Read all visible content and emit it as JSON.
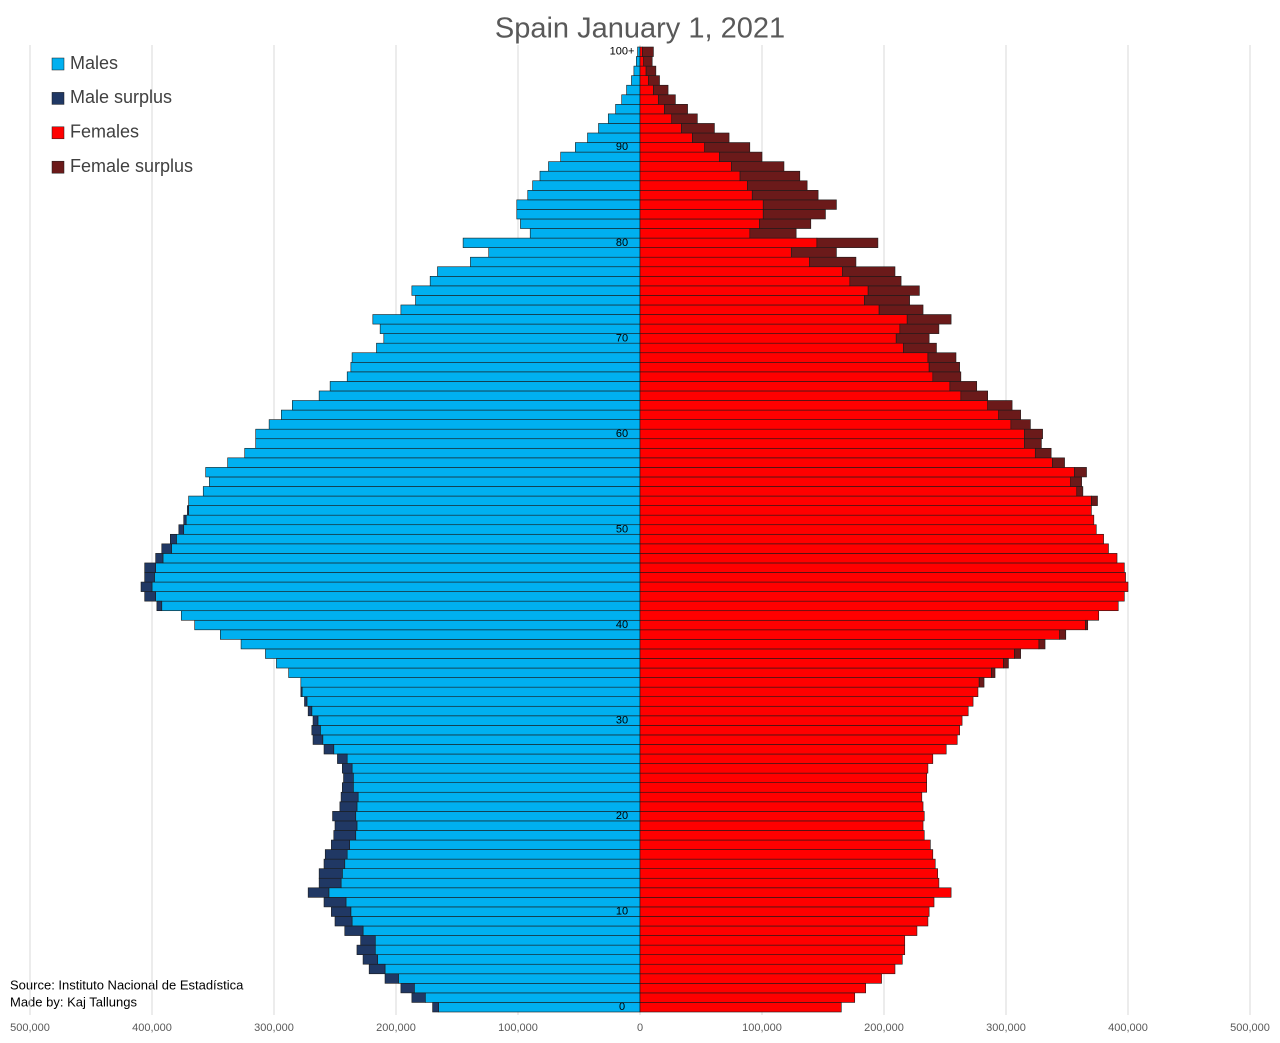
{
  "chart_data": {
    "type": "population-pyramid",
    "title": "Spain January 1, 2021",
    "source": "Source: Instituto Nacional de Estadística",
    "author": "Made by: Kaj Tallungs",
    "categories": [
      "0",
      null,
      null,
      null,
      null,
      null,
      null,
      null,
      null,
      null,
      "10",
      null,
      null,
      null,
      null,
      null,
      null,
      null,
      null,
      null,
      "20",
      null,
      null,
      null,
      null,
      null,
      null,
      null,
      null,
      null,
      "30",
      null,
      null,
      null,
      null,
      null,
      null,
      null,
      null,
      null,
      "40",
      null,
      null,
      null,
      null,
      null,
      null,
      null,
      null,
      null,
      "50",
      null,
      null,
      null,
      null,
      null,
      null,
      null,
      null,
      null,
      "60",
      null,
      null,
      null,
      null,
      null,
      null,
      null,
      null,
      null,
      "70",
      null,
      null,
      null,
      null,
      null,
      null,
      null,
      null,
      null,
      "80",
      null,
      null,
      null,
      null,
      null,
      null,
      null,
      null,
      null,
      "90",
      null,
      null,
      null,
      null,
      null,
      null,
      null,
      null,
      null,
      "100+"
    ],
    "series": [
      {
        "name": "Males",
        "color": "#00b0f0",
        "side": "left",
        "stack": "base",
        "values": [
          165000,
          176000,
          185000,
          198000,
          209000,
          215000,
          217000,
          217000,
          227000,
          236000,
          237000,
          241000,
          255000,
          245000,
          244000,
          242000,
          240000,
          238000,
          233000,
          232000,
          233000,
          232000,
          231000,
          235000,
          235000,
          236000,
          240000,
          251000,
          260000,
          262000,
          264000,
          269000,
          273000,
          277000,
          278000,
          288000,
          298000,
          307000,
          327000,
          344000,
          365000,
          376000,
          392000,
          397000,
          400000,
          398000,
          397000,
          391000,
          384000,
          380000,
          374000,
          372000,
          370000,
          370000,
          358000,
          353000,
          356000,
          338000,
          324000,
          315000,
          315000,
          304000,
          294000,
          285000,
          263000,
          254000,
          240000,
          237000,
          236000,
          216000,
          210000,
          213000,
          219000,
          196000,
          184000,
          187000,
          172000,
          166000,
          139000,
          124000,
          145000,
          90000,
          98000,
          101000,
          101000,
          92000,
          88000,
          82000,
          75000,
          65000,
          53000,
          43000,
          34000,
          26000,
          20000,
          15000,
          11000,
          7000,
          5000,
          3000,
          2000
        ]
      },
      {
        "name": "Male surplus",
        "color": "#203864",
        "side": "left",
        "stack": "top",
        "values": [
          5000,
          11000,
          11000,
          11000,
          13000,
          12000,
          15000,
          12000,
          15000,
          14000,
          16000,
          18000,
          17000,
          18000,
          19000,
          17000,
          18000,
          15000,
          18000,
          18000,
          19000,
          14000,
          14000,
          9000,
          8000,
          8000,
          8000,
          8000,
          8000,
          7000,
          4000,
          3000,
          2000,
          1000,
          null,
          null,
          null,
          null,
          null,
          null,
          null,
          null,
          4000,
          9000,
          9000,
          8000,
          9000,
          6000,
          8000,
          5000,
          4000,
          2000,
          1000,
          null,
          null,
          null,
          null,
          null,
          null,
          null,
          null,
          null,
          null,
          null,
          null,
          null,
          null,
          null,
          null,
          null,
          null,
          null,
          null,
          null,
          null,
          null,
          null,
          null,
          null,
          null,
          null,
          null,
          null,
          null,
          null,
          null,
          null,
          null,
          null,
          null,
          null,
          null,
          null,
          null,
          null,
          null,
          null,
          null,
          null,
          null,
          null
        ]
      },
      {
        "name": "Females",
        "color": "#ff0000",
        "side": "right",
        "stack": "base",
        "values": [
          165000,
          176000,
          185000,
          198000,
          209000,
          215000,
          217000,
          217000,
          227000,
          236000,
          237000,
          241000,
          255000,
          245000,
          244000,
          242000,
          240000,
          238000,
          233000,
          232000,
          233000,
          232000,
          231000,
          235000,
          235000,
          236000,
          240000,
          251000,
          260000,
          262000,
          264000,
          269000,
          273000,
          277000,
          278000,
          288000,
          298000,
          307000,
          327000,
          344000,
          365000,
          376000,
          392000,
          397000,
          400000,
          398000,
          397000,
          391000,
          384000,
          380000,
          374000,
          372000,
          370000,
          370000,
          358000,
          353000,
          356000,
          338000,
          324000,
          315000,
          315000,
          304000,
          294000,
          285000,
          263000,
          254000,
          240000,
          237000,
          236000,
          216000,
          210000,
          213000,
          219000,
          196000,
          184000,
          187000,
          172000,
          166000,
          139000,
          124000,
          145000,
          90000,
          98000,
          101000,
          101000,
          92000,
          88000,
          82000,
          75000,
          65000,
          53000,
          43000,
          34000,
          26000,
          20000,
          15000,
          11000,
          7000,
          5000,
          3000,
          2000
        ]
      },
      {
        "name": "Female surplus",
        "color": "#6b1a1a",
        "side": "right",
        "stack": "top",
        "values": [
          null,
          null,
          null,
          null,
          null,
          null,
          null,
          null,
          null,
          null,
          null,
          null,
          null,
          null,
          null,
          null,
          null,
          null,
          null,
          null,
          null,
          null,
          null,
          null,
          null,
          null,
          null,
          null,
          null,
          null,
          null,
          null,
          null,
          null,
          4000,
          3000,
          4000,
          5000,
          5000,
          5000,
          2000,
          null,
          null,
          null,
          null,
          null,
          null,
          null,
          null,
          null,
          null,
          null,
          null,
          5000,
          5000,
          9000,
          10000,
          10000,
          13000,
          14000,
          15000,
          16000,
          18000,
          20000,
          22000,
          22000,
          23000,
          25000,
          23000,
          27000,
          27000,
          32000,
          36000,
          36000,
          37000,
          42000,
          42000,
          43000,
          38000,
          37000,
          50000,
          38000,
          42000,
          51000,
          60000,
          54000,
          49000,
          49000,
          43000,
          35000,
          37000,
          30000,
          27000,
          21000,
          19000,
          14000,
          12000,
          9000,
          8000,
          7000,
          9000
        ]
      }
    ],
    "xlim": [
      -500000,
      500000
    ],
    "xticks": [
      {
        "value": -500000,
        "label": "500,000"
      },
      {
        "value": -400000,
        "label": "400,000"
      },
      {
        "value": -300000,
        "label": "300,000"
      },
      {
        "value": -200000,
        "label": "200,000"
      },
      {
        "value": -100000,
        "label": "100,000"
      },
      0,
      {
        "value": 100000,
        "label": "100,000"
      },
      {
        "value": 200000,
        "label": "200,000"
      },
      {
        "value": 300000,
        "label": "300,000"
      },
      {
        "value": 400000,
        "label": "400,000"
      },
      {
        "value": 500000,
        "label": "500,000"
      }
    ],
    "grid": true,
    "legend": "top-left"
  }
}
